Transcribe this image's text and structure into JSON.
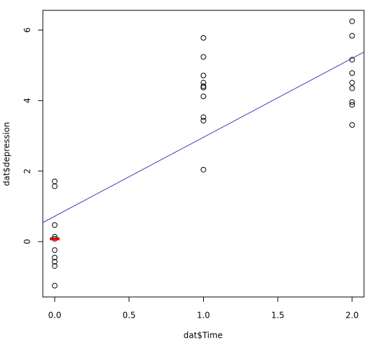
{
  "chart_data": {
    "type": "scatter",
    "xlabel": "dat$Time",
    "ylabel": "dat$depression",
    "x": [
      0,
      0,
      0,
      0,
      0,
      0,
      0,
      0,
      0,
      0,
      1,
      1,
      1,
      1,
      1,
      1,
      1,
      1,
      1,
      1,
      2,
      2,
      2,
      2,
      2,
      2,
      2,
      2,
      2
    ],
    "y": [
      1.71,
      1.57,
      0.47,
      0.14,
      0.08,
      -0.24,
      -0.45,
      -0.57,
      -0.69,
      -1.25,
      5.78,
      5.24,
      4.71,
      4.51,
      4.41,
      4.37,
      4.12,
      3.53,
      3.43,
      2.04,
      6.25,
      5.84,
      5.16,
      4.78,
      4.51,
      4.35,
      3.96,
      3.88,
      3.31
    ],
    "color": "#000000",
    "regression": {
      "intercept": 0.72,
      "slope": 2.24,
      "color": "#3a3ab8"
    },
    "highlight": {
      "x": 0,
      "y": 0.08,
      "color": "#e00000"
    },
    "xlim": [
      -0.08,
      2.08
    ],
    "ylim": [
      -1.57,
      6.56
    ],
    "xticks": [
      {
        "value": 0,
        "label": "0.0"
      },
      {
        "value": 0.5,
        "label": "0.5"
      },
      {
        "value": 1,
        "label": "1.0"
      },
      {
        "value": 1.5,
        "label": "1.5"
      },
      {
        "value": 2,
        "label": "2.0"
      }
    ],
    "yticks": [
      0,
      2,
      4,
      6
    ]
  }
}
